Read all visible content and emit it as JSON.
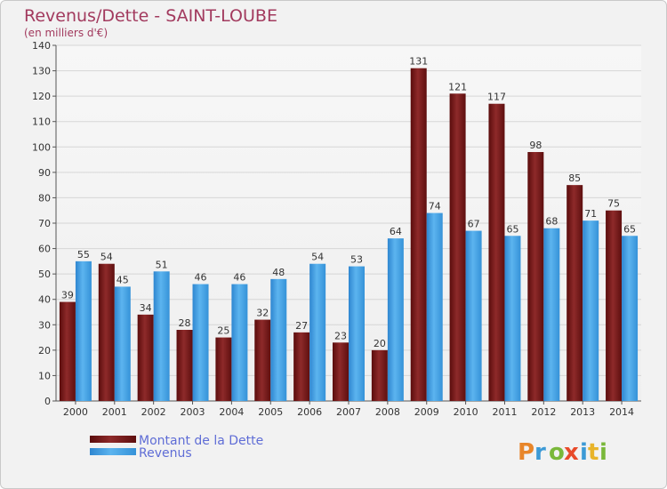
{
  "chart_data": {
    "type": "bar",
    "title": "Revenus/Dette - SAINT-LOUBE",
    "subtitle": "(en milliers d'€)",
    "categories": [
      "2000",
      "2001",
      "2002",
      "2003",
      "2004",
      "2005",
      "2006",
      "2007",
      "2008",
      "2009",
      "2010",
      "2011",
      "2012",
      "2013",
      "2014"
    ],
    "series": [
      {
        "name": "Montant de la Dette",
        "color": "#7b1a1a",
        "values": [
          39,
          54,
          34,
          28,
          25,
          32,
          27,
          23,
          20,
          131,
          121,
          117,
          98,
          85,
          75
        ]
      },
      {
        "name": "Revenus",
        "color": "#4aa6e8",
        "values": [
          55,
          45,
          51,
          46,
          46,
          48,
          54,
          53,
          64,
          74,
          67,
          65,
          68,
          71,
          65
        ]
      }
    ],
    "ylim": [
      0,
      140
    ],
    "yticks": [
      0,
      10,
      20,
      30,
      40,
      50,
      60,
      70,
      80,
      90,
      100,
      110,
      120,
      130,
      140
    ],
    "grid": true,
    "legend": "bottom-left"
  },
  "logo": {
    "text": "Proxiti"
  }
}
